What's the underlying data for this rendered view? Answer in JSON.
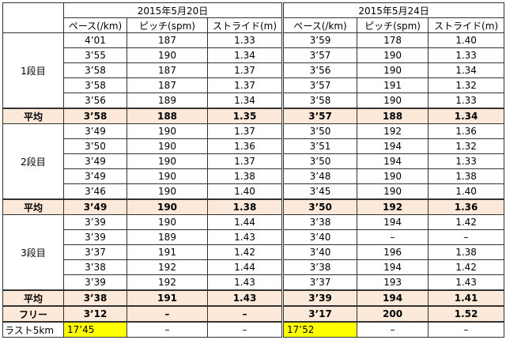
{
  "table": {
    "dates": [
      "2015年5月20日",
      "2015年5月24日"
    ],
    "columns": [
      "ペース(/km)",
      "ピッチ(spm)",
      "ストライド(m)",
      "ペース(/km)",
      "ピッチ(spm)",
      "ストライド(m)"
    ],
    "sections": [
      {
        "label": "1段目",
        "rows": [
          [
            "4’01",
            "187",
            "1.33",
            "3’59",
            "178",
            "1.40"
          ],
          [
            "3’55",
            "190",
            "1.34",
            "3’57",
            "190",
            "1.33"
          ],
          [
            "3’58",
            "187",
            "1.37",
            "3’56",
            "190",
            "1.34"
          ],
          [
            "3’58",
            "187",
            "1.37",
            "3’57",
            "191",
            "1.32"
          ],
          [
            "3’56",
            "189",
            "1.34",
            "3’58",
            "190",
            "1.33"
          ]
        ],
        "summary": {
          "label": "平均",
          "cells": [
            "3’58",
            "188",
            "1.35",
            "3’57",
            "188",
            "1.34"
          ]
        }
      },
      {
        "label": "2段目",
        "rows": [
          [
            "3’49",
            "190",
            "1.37",
            "3’50",
            "192",
            "1.36"
          ],
          [
            "3’50",
            "190",
            "1.36",
            "3’51",
            "194",
            "1.32"
          ],
          [
            "3’49",
            "190",
            "1.37",
            "3’50",
            "194",
            "1.33"
          ],
          [
            "3’49",
            "190",
            "1.38",
            "3’48",
            "190",
            "1.38"
          ],
          [
            "3’46",
            "190",
            "1.40",
            "3’45",
            "190",
            "1.40"
          ]
        ],
        "summary": {
          "label": "平均",
          "cells": [
            "3’49",
            "190",
            "1.38",
            "3’50",
            "192",
            "1.36"
          ]
        }
      },
      {
        "label": "3段目",
        "rows": [
          [
            "3’39",
            "190",
            "1.44",
            "3’38",
            "194",
            "1.42"
          ],
          [
            "3’39",
            "189",
            "1.43",
            "3’40",
            "–",
            "–"
          ],
          [
            "3’37",
            "191",
            "1.42",
            "3’40",
            "196",
            "1.38"
          ],
          [
            "3’38",
            "192",
            "1.44",
            "3’38",
            "194",
            "1.42"
          ],
          [
            "3’39",
            "192",
            "1.43",
            "3’37",
            "193",
            "1.43"
          ]
        ],
        "summary": {
          "label": "平均",
          "cells": [
            "3’38",
            "191",
            "1.43",
            "3’39",
            "194",
            "1.41"
          ]
        }
      }
    ],
    "extra_rows": [
      {
        "label": "フリー",
        "cells": [
          "3’12",
          "–",
          "–",
          "3’17",
          "200",
          "1.52"
        ]
      },
      {
        "label": "ラスト5km",
        "cells": [
          "17’45",
          "–",
          "–",
          "17’52",
          "–",
          "–"
        ]
      }
    ]
  }
}
